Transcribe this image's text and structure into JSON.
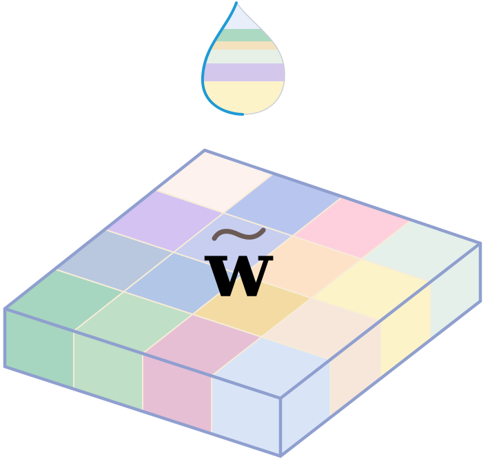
{
  "diagram": {
    "symbol": "w",
    "symbol_accent": "~",
    "colors": {
      "tile_edge": "#8f9fcf",
      "grout": "#f6ecd8",
      "droplet_outline": "#1e9ad6",
      "symbol": "#000000",
      "accent": "#6b5a55"
    },
    "grid": {
      "rows": 4,
      "cols": 4,
      "cells": [
        [
          "#a6d6bf",
          "#b9c7df",
          "#d3c2f2",
          "#fdf2ee"
        ],
        [
          "#bfdfc6",
          "#b2c6e7",
          "#c7cef0",
          "#b8c5ee"
        ],
        [
          "#e6bfd5",
          "#f3dba3",
          "#fde2c8",
          "#fed0dd"
        ],
        [
          "#d9e4f7",
          "#f6e7da",
          "#fdf3c8",
          "#e5f0ea"
        ]
      ]
    },
    "front_face": [
      "#a6d6bf",
      "#bfdfc6",
      "#e6bfd5",
      "#d9e4f7"
    ],
    "right_face": [
      "#d9e4f7",
      "#f6e7da",
      "#fdf3c8",
      "#e5f0ea"
    ],
    "droplet_bands": [
      "#fdf3c8",
      "#d3c8ec",
      "#e6f0e6",
      "#f3e2bd",
      "#abd9c1",
      "#e9eefb"
    ]
  }
}
